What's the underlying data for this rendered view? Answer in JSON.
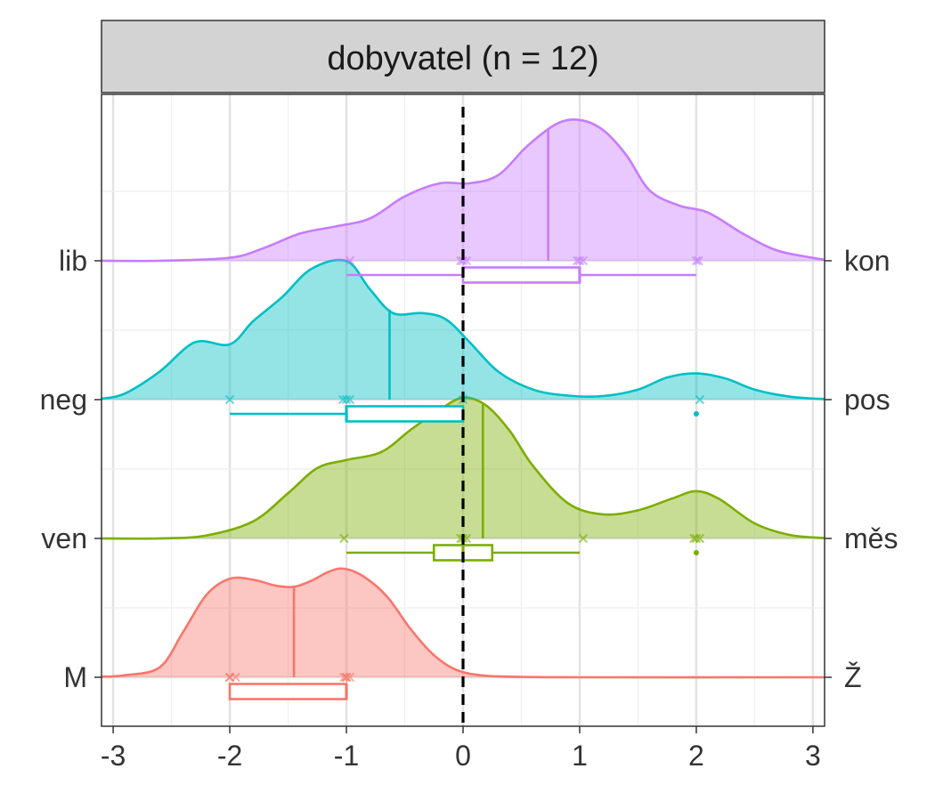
{
  "chart_data": {
    "type": "ridgeline",
    "facet_title": "dobyvatel (n = 12)",
    "xlim": [
      -3.1,
      3.1
    ],
    "x_ticks": [
      -3,
      -2,
      -1,
      0,
      1,
      2,
      3
    ],
    "x_tick_labels": [
      "-3",
      "-2",
      "-1",
      "0",
      "1",
      "2",
      "3"
    ],
    "reference_line_x": 0,
    "grid": true,
    "series": [
      {
        "left_label": "M",
        "right_label": "Ž",
        "color": "#F8766D",
        "density": [
          [
            -3.1,
            0.006
          ],
          [
            -2.9,
            0.02
          ],
          [
            -2.6,
            0.1
          ],
          [
            -2.4,
            0.45
          ],
          [
            -2.2,
            0.82
          ],
          [
            -2.0,
            0.98
          ],
          [
            -1.8,
            0.97
          ],
          [
            -1.6,
            0.91
          ],
          [
            -1.45,
            0.9
          ],
          [
            -1.3,
            0.96
          ],
          [
            -1.15,
            1.05
          ],
          [
            -1.02,
            1.08
          ],
          [
            -0.85,
            1.0
          ],
          [
            -0.65,
            0.8
          ],
          [
            -0.45,
            0.48
          ],
          [
            -0.25,
            0.22
          ],
          [
            -0.05,
            0.07
          ],
          [
            0.2,
            0.015
          ],
          [
            0.6,
            0.003
          ],
          [
            1.0,
            0.0
          ],
          [
            3.1,
            0.0
          ]
        ],
        "mean": -1.45,
        "points": [
          -2.0,
          -2.0,
          -1.95,
          -1.0,
          -1.02,
          -0.97,
          -1.0
        ],
        "box": {
          "whisker_low": -2.0,
          "q1": -2.0,
          "median": -1.0,
          "q3": -1.0,
          "whisker_high": -1.0
        },
        "outliers": []
      },
      {
        "left_label": "ven",
        "right_label": "měs",
        "color": "#7CAE00",
        "density": [
          [
            -3.1,
            0.0
          ],
          [
            -2.6,
            0.0
          ],
          [
            -2.2,
            0.03
          ],
          [
            -1.8,
            0.17
          ],
          [
            -1.5,
            0.45
          ],
          [
            -1.25,
            0.7
          ],
          [
            -1.0,
            0.78
          ],
          [
            -0.7,
            0.86
          ],
          [
            -0.45,
            1.08
          ],
          [
            -0.2,
            1.28
          ],
          [
            0.0,
            1.4
          ],
          [
            0.2,
            1.32
          ],
          [
            0.4,
            1.07
          ],
          [
            0.6,
            0.72
          ],
          [
            0.9,
            0.35
          ],
          [
            1.2,
            0.24
          ],
          [
            1.5,
            0.28
          ],
          [
            1.8,
            0.4
          ],
          [
            2.0,
            0.47
          ],
          [
            2.2,
            0.39
          ],
          [
            2.5,
            0.15
          ],
          [
            2.8,
            0.035
          ],
          [
            3.1,
            0.004
          ]
        ],
        "mean": 0.17,
        "points": [
          -1.02,
          0.0,
          -0.02,
          0.03,
          1.03,
          2.0,
          1.98,
          2.03
        ],
        "box": {
          "whisker_low": -1.0,
          "q1": -0.25,
          "median": 0.0,
          "q3": 0.25,
          "whisker_high": 1.0
        },
        "outliers": [
          2.0
        ]
      },
      {
        "left_label": "neg",
        "right_label": "pos",
        "color": "#00BFC4",
        "density": [
          [
            -3.1,
            0.008
          ],
          [
            -2.9,
            0.06
          ],
          [
            -2.6,
            0.28
          ],
          [
            -2.3,
            0.57
          ],
          [
            -2.0,
            0.55
          ],
          [
            -1.8,
            0.78
          ],
          [
            -1.55,
            1.02
          ],
          [
            -1.3,
            1.3
          ],
          [
            -1.0,
            1.38
          ],
          [
            -0.8,
            1.1
          ],
          [
            -0.6,
            0.86
          ],
          [
            -0.35,
            0.86
          ],
          [
            -0.15,
            0.8
          ],
          [
            0.05,
            0.58
          ],
          [
            0.3,
            0.28
          ],
          [
            0.6,
            0.1
          ],
          [
            0.9,
            0.04
          ],
          [
            1.2,
            0.035
          ],
          [
            1.5,
            0.1
          ],
          [
            1.75,
            0.22
          ],
          [
            2.0,
            0.26
          ],
          [
            2.25,
            0.21
          ],
          [
            2.5,
            0.1
          ],
          [
            2.8,
            0.03
          ],
          [
            3.1,
            0.005
          ]
        ],
        "mean": -0.63,
        "points": [
          -2.0,
          -1.03,
          -0.97,
          -1.0,
          0.0,
          2.03
        ],
        "box": {
          "whisker_low": -2.0,
          "q1": -1.0,
          "median": -1.0,
          "q3": 0.0,
          "whisker_high": 0.0
        },
        "outliers": [
          2.0
        ]
      },
      {
        "left_label": "lib",
        "right_label": "kon",
        "color": "#C77CFF",
        "density": [
          [
            -3.1,
            0.0
          ],
          [
            -2.6,
            0.0
          ],
          [
            -2.0,
            0.03
          ],
          [
            -1.7,
            0.13
          ],
          [
            -1.4,
            0.27
          ],
          [
            -1.1,
            0.34
          ],
          [
            -0.8,
            0.42
          ],
          [
            -0.5,
            0.64
          ],
          [
            -0.2,
            0.77
          ],
          [
            0.05,
            0.77
          ],
          [
            0.3,
            0.85
          ],
          [
            0.55,
            1.14
          ],
          [
            0.8,
            1.36
          ],
          [
            1.0,
            1.4
          ],
          [
            1.2,
            1.3
          ],
          [
            1.4,
            1.05
          ],
          [
            1.6,
            0.7
          ],
          [
            1.85,
            0.55
          ],
          [
            2.1,
            0.48
          ],
          [
            2.4,
            0.27
          ],
          [
            2.7,
            0.1
          ],
          [
            3.1,
            0.01
          ]
        ],
        "mean": 0.73,
        "points": [
          -0.97,
          -0.02,
          0.0,
          0.03,
          1.0,
          1.03,
          0.98,
          2.0,
          2.02
        ],
        "box": {
          "whisker_low": -1.0,
          "q1": 0.0,
          "median": 1.0,
          "q3": 1.0,
          "whisker_high": 2.0
        },
        "outliers": []
      }
    ]
  }
}
